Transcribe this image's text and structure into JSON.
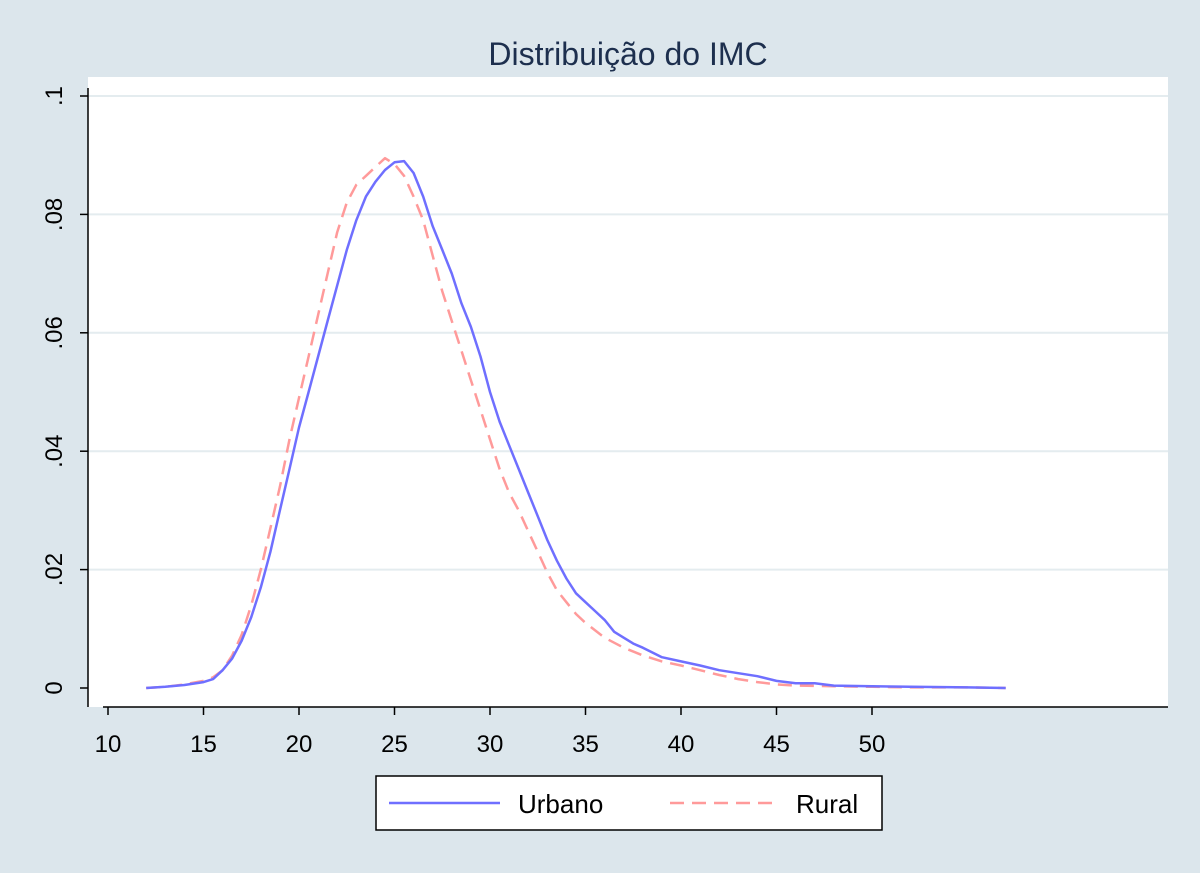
{
  "chart_data": {
    "type": "line",
    "title": "Distribuição do IMC",
    "xlabel": "",
    "ylabel": "",
    "xlim": [
      10,
      57.5
    ],
    "ylim": [
      0,
      0.1
    ],
    "x_ticks": [
      10,
      15,
      20,
      25,
      30,
      35,
      40,
      45,
      50
    ],
    "x_tick_labels": [
      "10",
      "15",
      "20",
      "25",
      "30",
      "35",
      "40",
      "45",
      "50"
    ],
    "y_ticks": [
      0,
      0.02,
      0.04,
      0.06,
      0.08,
      0.1
    ],
    "y_tick_labels": [
      "0",
      ".02",
      ".04",
      ".06",
      ".08",
      ".1"
    ],
    "grid": true,
    "legend_position": "bottom",
    "series": [
      {
        "name": "Urbano",
        "color": "#6f6fff",
        "style": "solid",
        "points": [
          [
            12,
            0
          ],
          [
            13,
            0.0002
          ],
          [
            14,
            0.0005
          ],
          [
            15,
            0.001
          ],
          [
            15.5,
            0.0015
          ],
          [
            16,
            0.003
          ],
          [
            16.5,
            0.005
          ],
          [
            17,
            0.008
          ],
          [
            17.5,
            0.012
          ],
          [
            18,
            0.017
          ],
          [
            18.5,
            0.023
          ],
          [
            19,
            0.03
          ],
          [
            19.5,
            0.037
          ],
          [
            20,
            0.044
          ],
          [
            20.5,
            0.05
          ],
          [
            21,
            0.056
          ],
          [
            21.5,
            0.062
          ],
          [
            22,
            0.068
          ],
          [
            22.5,
            0.074
          ],
          [
            23,
            0.079
          ],
          [
            23.5,
            0.083
          ],
          [
            24,
            0.0855
          ],
          [
            24.5,
            0.0875
          ],
          [
            25,
            0.0888
          ],
          [
            25.5,
            0.089
          ],
          [
            26,
            0.087
          ],
          [
            26.5,
            0.083
          ],
          [
            27,
            0.078
          ],
          [
            27.5,
            0.074
          ],
          [
            28,
            0.07
          ],
          [
            28.5,
            0.065
          ],
          [
            29,
            0.061
          ],
          [
            29.5,
            0.056
          ],
          [
            30,
            0.05
          ],
          [
            30.5,
            0.045
          ],
          [
            31,
            0.041
          ],
          [
            31.5,
            0.037
          ],
          [
            32,
            0.033
          ],
          [
            32.5,
            0.029
          ],
          [
            33,
            0.025
          ],
          [
            33.5,
            0.0215
          ],
          [
            34,
            0.0185
          ],
          [
            34.5,
            0.016
          ],
          [
            35,
            0.0145
          ],
          [
            35.5,
            0.013
          ],
          [
            36,
            0.0115
          ],
          [
            36.5,
            0.0095
          ],
          [
            37,
            0.0085
          ],
          [
            37.5,
            0.0075
          ],
          [
            38,
            0.0068
          ],
          [
            38.5,
            0.006
          ],
          [
            39,
            0.0052
          ],
          [
            40,
            0.0045
          ],
          [
            41,
            0.0038
          ],
          [
            42,
            0.003
          ],
          [
            43,
            0.0025
          ],
          [
            44,
            0.002
          ],
          [
            45,
            0.0012
          ],
          [
            46,
            0.0008
          ],
          [
            47,
            0.0008
          ],
          [
            48,
            0.0004
          ],
          [
            50,
            0.0003
          ],
          [
            52,
            0.0002
          ],
          [
            55,
            0.0001
          ],
          [
            57,
            0
          ]
        ]
      },
      {
        "name": "Rural",
        "color": "#ff9a9a",
        "style": "dashed",
        "points": [
          [
            12,
            0
          ],
          [
            13,
            0.0002
          ],
          [
            14,
            0.0006
          ],
          [
            15,
            0.0012
          ],
          [
            15.5,
            0.0018
          ],
          [
            16,
            0.003
          ],
          [
            16.5,
            0.0055
          ],
          [
            17,
            0.009
          ],
          [
            17.5,
            0.014
          ],
          [
            18,
            0.02
          ],
          [
            18.5,
            0.027
          ],
          [
            19,
            0.034
          ],
          [
            19.5,
            0.042
          ],
          [
            20,
            0.049
          ],
          [
            20.5,
            0.056
          ],
          [
            21,
            0.063
          ],
          [
            21.5,
            0.07
          ],
          [
            22,
            0.077
          ],
          [
            22.5,
            0.082
          ],
          [
            23,
            0.085
          ],
          [
            23.5,
            0.0865
          ],
          [
            24,
            0.088
          ],
          [
            24.5,
            0.0895
          ],
          [
            25,
            0.0885
          ],
          [
            25.5,
            0.0865
          ],
          [
            26,
            0.083
          ],
          [
            26.5,
            0.079
          ],
          [
            27,
            0.073
          ],
          [
            27.5,
            0.067
          ],
          [
            28,
            0.062
          ],
          [
            28.5,
            0.057
          ],
          [
            29,
            0.052
          ],
          [
            29.5,
            0.047
          ],
          [
            30,
            0.042
          ],
          [
            30.5,
            0.037
          ],
          [
            31,
            0.033
          ],
          [
            31.5,
            0.03
          ],
          [
            32,
            0.0265
          ],
          [
            32.5,
            0.023
          ],
          [
            33,
            0.0195
          ],
          [
            33.5,
            0.0165
          ],
          [
            34,
            0.0145
          ],
          [
            34.5,
            0.0125
          ],
          [
            35,
            0.011
          ],
          [
            36,
            0.0085
          ],
          [
            37,
            0.0068
          ],
          [
            38,
            0.0055
          ],
          [
            39,
            0.0045
          ],
          [
            40,
            0.0038
          ],
          [
            41,
            0.003
          ],
          [
            42,
            0.0022
          ],
          [
            43,
            0.0015
          ],
          [
            44,
            0.001
          ],
          [
            45,
            0.0006
          ],
          [
            46,
            0.0004
          ],
          [
            48,
            0.0003
          ],
          [
            50,
            0.0002
          ],
          [
            52,
            0.0001
          ],
          [
            55,
            0.0001
          ],
          [
            57,
            0
          ]
        ]
      }
    ]
  }
}
